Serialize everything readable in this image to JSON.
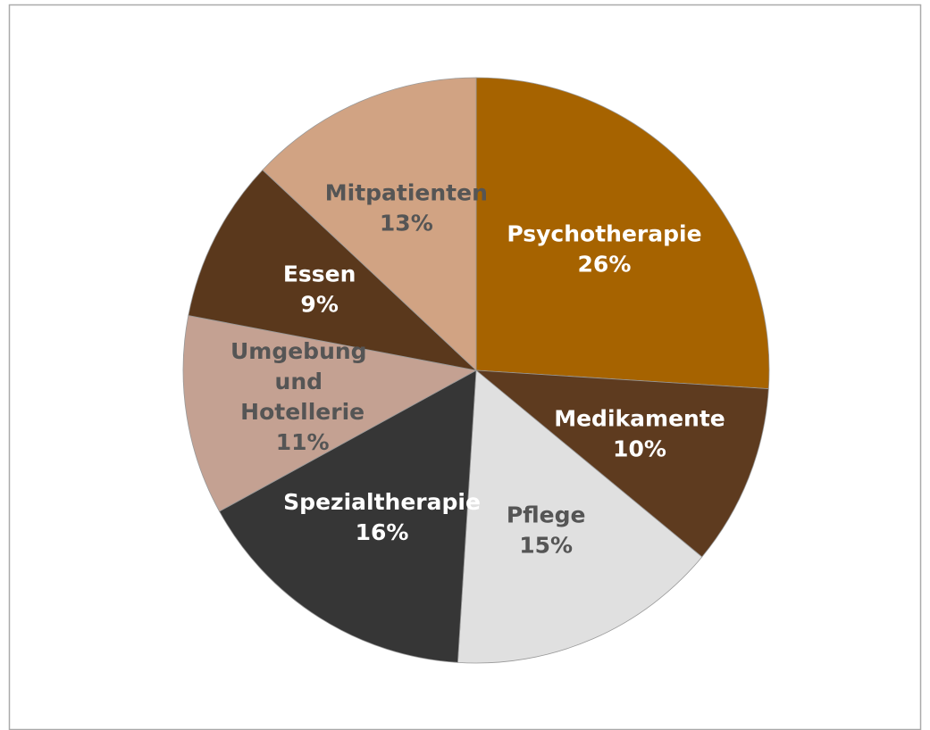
{
  "chart_data": {
    "type": "pie",
    "categories": [
      "Psychotherapie",
      "Medikamente",
      "Pflege",
      "Spezialtherapie",
      "Umgebung und Hotellerie",
      "Essen",
      "Mitpatienten"
    ],
    "values": [
      26,
      10,
      15,
      16,
      11,
      9,
      13
    ],
    "value_labels": [
      "26%",
      "10%",
      "15%",
      "16%",
      "11%",
      "9%",
      "13%"
    ],
    "colors": [
      "#a66300",
      "#5e3b1f",
      "#e0e0e0",
      "#363636",
      "#c4a192",
      "#5a381c",
      "#d1a383"
    ]
  }
}
